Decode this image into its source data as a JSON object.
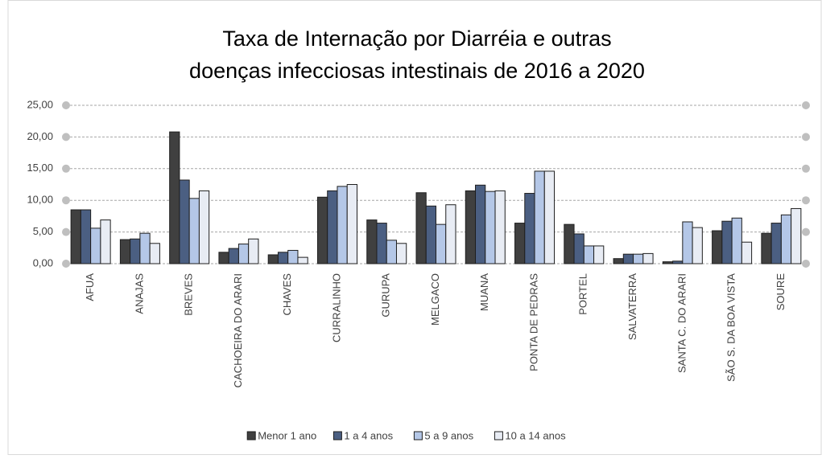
{
  "chart_data": {
    "type": "bar",
    "title": "Taxa de Internação por Diarréia e outras doenças infecciosas intestinais de 2016 a 2020",
    "categories": [
      "AFUA",
      "ANAJAS",
      "BREVES",
      "CACHOEIRA DO ARARI",
      "CHAVES",
      "CURRALINHO",
      "GURUPA",
      "MELGACO",
      "MUANA",
      "PONTA DE PEDRAS",
      "PORTEL",
      "SALVATERRA",
      "SANTA C. DO ARARI",
      "SÃO S. DA BOA VISTA",
      "SOURE"
    ],
    "series": [
      {
        "name": "Menor 1 ano",
        "color": "#404040",
        "values": [
          8.5,
          3.8,
          20.8,
          1.8,
          1.4,
          10.5,
          6.9,
          11.2,
          11.5,
          6.4,
          6.2,
          0.8,
          0.3,
          5.2,
          4.8
        ]
      },
      {
        "name": "1 a 4 anos",
        "color": "#4b5f82",
        "values": [
          8.5,
          3.9,
          13.2,
          2.4,
          1.8,
          11.5,
          6.4,
          9.1,
          12.4,
          11.1,
          4.7,
          1.5,
          0.4,
          6.7,
          6.4
        ]
      },
      {
        "name": "5 a 9 anos",
        "color": "#b4c7e7",
        "values": [
          5.6,
          4.8,
          10.3,
          3.1,
          2.1,
          12.2,
          3.7,
          6.2,
          11.4,
          14.6,
          2.8,
          1.5,
          6.6,
          7.2,
          7.7
        ]
      },
      {
        "name": "10 a 14 anos",
        "color": "#e8ecf4",
        "values": [
          6.9,
          3.2,
          11.5,
          3.9,
          1.0,
          12.5,
          3.2,
          9.3,
          11.5,
          14.6,
          2.8,
          1.6,
          5.7,
          3.4,
          8.7
        ]
      }
    ],
    "ylim": [
      0,
      25
    ],
    "yticks": [
      {
        "value": 0,
        "label": "0,00"
      },
      {
        "value": 5,
        "label": "5,00"
      },
      {
        "value": 10,
        "label": "10,00"
      },
      {
        "value": 15,
        "label": "15,00"
      },
      {
        "value": 20,
        "label": "20,00"
      },
      {
        "value": 25,
        "label": "25,00"
      }
    ],
    "grid": true,
    "legend": "bottom"
  }
}
